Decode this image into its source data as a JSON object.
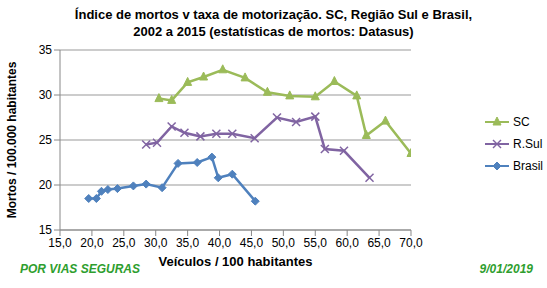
{
  "chart_data": {
    "type": "line",
    "title": [
      "Índice de mortos v taxa de motorização. SC, Região Sul e Brasil,",
      "2002 a 2015 (estatísticas de mortos: Datasus)"
    ],
    "x_label": "Veículos / 100 habitantes",
    "y_label": "Mortos / 100.000 habitantes",
    "annotations": [
      "POR VIAS SEGURAS",
      "9/01/2019"
    ],
    "xlim": [
      15,
      70
    ],
    "xticks": [
      {
        "value": 15,
        "label": "15,0"
      },
      {
        "value": 20,
        "label": "20,0"
      },
      {
        "value": 25,
        "label": "25,0"
      },
      {
        "value": 30,
        "label": "30,0"
      },
      {
        "value": 35,
        "label": "35,0"
      },
      {
        "value": 40,
        "label": "40,0"
      },
      {
        "value": 45,
        "label": "45,0"
      },
      {
        "value": 50,
        "label": "50,0"
      },
      {
        "value": 55,
        "label": "55,0"
      },
      {
        "value": 60,
        "label": "60,0"
      },
      {
        "value": 65,
        "label": "65,0"
      },
      {
        "value": 70,
        "label": "70,0"
      }
    ],
    "ylim": [
      15,
      35
    ],
    "yticks": [
      15,
      20,
      25,
      30,
      35
    ],
    "grid": true,
    "legend": "right",
    "series": [
      {
        "name": "SC",
        "color": "#9bbb59",
        "marker": "triangle",
        "x": [
          30.5,
          32.5,
          35,
          37.5,
          40.5,
          44,
          47.5,
          51,
          55,
          58,
          61.5,
          63,
          66,
          70
        ],
        "values": [
          29.6,
          29.4,
          31.4,
          32.0,
          32.8,
          31.9,
          30.3,
          29.9,
          29.8,
          31.5,
          29.9,
          25.5,
          27.1,
          23.5
        ]
      },
      {
        "name": "R.Sul",
        "color": "#8064a2",
        "marker": "x",
        "x": [
          28.5,
          30.2,
          32.5,
          34.5,
          37,
          39.5,
          42,
          45.5,
          49,
          52,
          55,
          56.5,
          59.5,
          63.5
        ],
        "values": [
          24.5,
          24.7,
          26.5,
          25.8,
          25.4,
          25.7,
          25.7,
          25.2,
          27.5,
          27.0,
          27.6,
          24.0,
          23.8,
          20.8
        ]
      },
      {
        "name": "Brasil",
        "color": "#4f81bd",
        "marker": "diamond",
        "x": [
          19.5,
          20.7,
          21.5,
          22.5,
          24,
          26.5,
          28.5,
          31,
          33.5,
          36.5,
          38.8,
          39.8,
          42,
          45.6
        ],
        "values": [
          18.5,
          18.5,
          19.3,
          19.5,
          19.6,
          19.9,
          20.1,
          19.7,
          22.4,
          22.5,
          23.1,
          20.8,
          21.2,
          18.2
        ]
      }
    ]
  }
}
